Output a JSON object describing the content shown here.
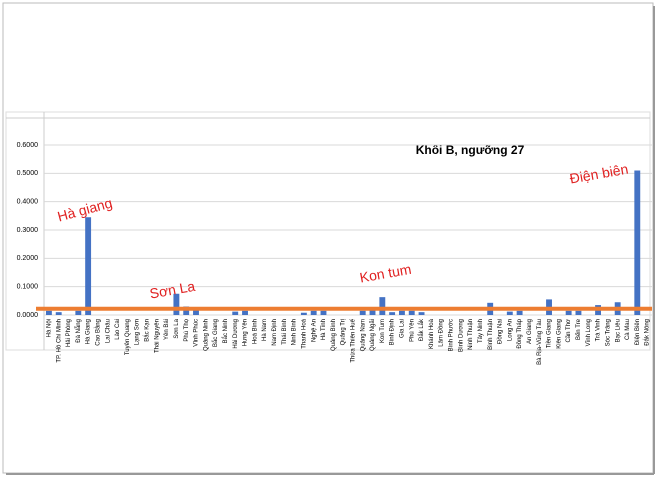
{
  "chart_data": {
    "type": "bar",
    "title": "Khối B, ngưỡng 27",
    "categories": [
      "Hà Nội",
      "TP. Hồ Chí Minh",
      "Hải Phòng",
      "Đà Nẵng",
      "Hà Giang",
      "Cao Bằng",
      "Lai Châu",
      "Lào Cai",
      "Tuyên Quang",
      "Lạng Sơn",
      "Bắc Kạn",
      "Thái Nguyên",
      "Yên Bái",
      "Sơn La",
      "Phú Thọ",
      "Vĩnh Phúc",
      "Quảng Ninh",
      "Bắc Giang",
      "Bắc Ninh",
      "Hải Dương",
      "Hưng Yên",
      "Hoà Bình",
      "Hà Nam",
      "Nam Định",
      "Thái Bình",
      "Ninh Bình",
      "Thanh Hoá",
      "Nghệ An",
      "Hà Tĩnh",
      "Quảng Bình",
      "Quảng Trị",
      "Thừa Thiên Huế",
      "Quảng Nam",
      "Quảng Ngãi",
      "Kon Tum",
      "Bình Định",
      "Gia Lai",
      "Phú Yên",
      "Đắk Lắk",
      "Khánh Hoà",
      "Lâm Đồng",
      "Bình Phước",
      "Bình Dương",
      "Ninh Thuận",
      "Tây Ninh",
      "Bình Thuận",
      "Đồng Nai",
      "Long An",
      "Đồng Tháp",
      "An Giang",
      "Bà Rịa-Vũng Tàu",
      "Tiền Giang",
      "Kiên Giang",
      "Cần Thơ",
      "Bến Tre",
      "Vĩnh Long",
      "Trà Vinh",
      "Sóc Trăng",
      "Bạc Liêu",
      "Cà Mau",
      "Điện Biên",
      "Đắk Nông"
    ],
    "values": [
      0.015,
      0.01,
      0,
      0.015,
      0.345,
      0,
      0,
      0,
      0,
      0,
      0,
      0,
      0,
      0.075,
      0.03,
      0.02,
      0,
      0,
      0,
      0.012,
      0.015,
      0,
      0,
      0,
      0,
      0,
      0.008,
      0.015,
      0.015,
      0,
      0,
      0,
      0.015,
      0.02,
      0.063,
      0.01,
      0.015,
      0.015,
      0.01,
      0,
      0,
      0,
      0,
      0,
      0,
      0.043,
      0,
      0.012,
      0.015,
      0,
      0,
      0.055,
      0,
      0.015,
      0.015,
      0,
      0.035,
      0,
      0.045,
      0,
      0.51,
      0
    ],
    "color": "#4472c4",
    "ylim": [
      0,
      0.6
    ],
    "yticks": [
      {
        "value": 0,
        "label": "0.0000"
      },
      {
        "value": 0.1,
        "label": "0.1000"
      },
      {
        "value": 0.2,
        "label": "0.2000"
      },
      {
        "value": 0.3,
        "label": "0.3000"
      },
      {
        "value": 0.4,
        "label": "0.4000"
      },
      {
        "value": 0.5,
        "label": "0.5000"
      },
      {
        "value": 0.6,
        "label": "0.6000"
      }
    ],
    "grid": true,
    "reference_line": {
      "value": 0.022,
      "color": "#ed7d31"
    },
    "annotations": [
      "Hà giang",
      "Sơn La",
      "Kon tum",
      "Điện biên"
    ],
    "annotation_color": "#e02020"
  }
}
